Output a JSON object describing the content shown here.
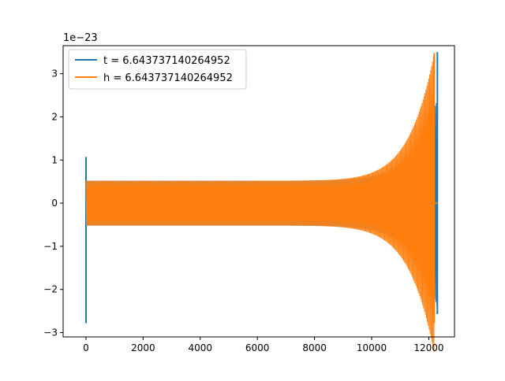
{
  "chart_data": {
    "type": "line",
    "title": "",
    "xlabel": "",
    "ylabel": "",
    "offset_text": "1e−23",
    "xlim": [
      -800,
      12900
    ],
    "ylim": [
      -3.1,
      3.65
    ],
    "x_ticks": [
      0,
      2000,
      4000,
      6000,
      8000,
      10000,
      12000
    ],
    "x_tick_labels": [
      "0",
      "2000",
      "4000",
      "6000",
      "8000",
      "10000",
      "12000"
    ],
    "y_ticks": [
      -3,
      -2,
      -1,
      0,
      1,
      2,
      3
    ],
    "y_tick_labels": [
      "−3",
      "−2",
      "−1",
      "0",
      "1",
      "2",
      "3"
    ],
    "grid": false,
    "legend_position": "top-left",
    "series": [
      {
        "name": "t = 6.643737140264952",
        "color": "#1f77b4",
        "x_start": 0,
        "x_end": 12300,
        "envelope_start": 0.52,
        "envelope_end": 2.4,
        "spike_start": {
          "max": 1.07,
          "min": -2.78
        },
        "spike_end": {
          "max": 3.5,
          "min": -2.57
        }
      },
      {
        "name": "h = 6.643737140264952",
        "color": "#ff7f0e",
        "x_start": 0,
        "x_end": 12300,
        "envelope_start": 0.52,
        "envelope_end": 3.48,
        "merger_x": 12190,
        "merger_min": -2.78
      }
    ]
  }
}
